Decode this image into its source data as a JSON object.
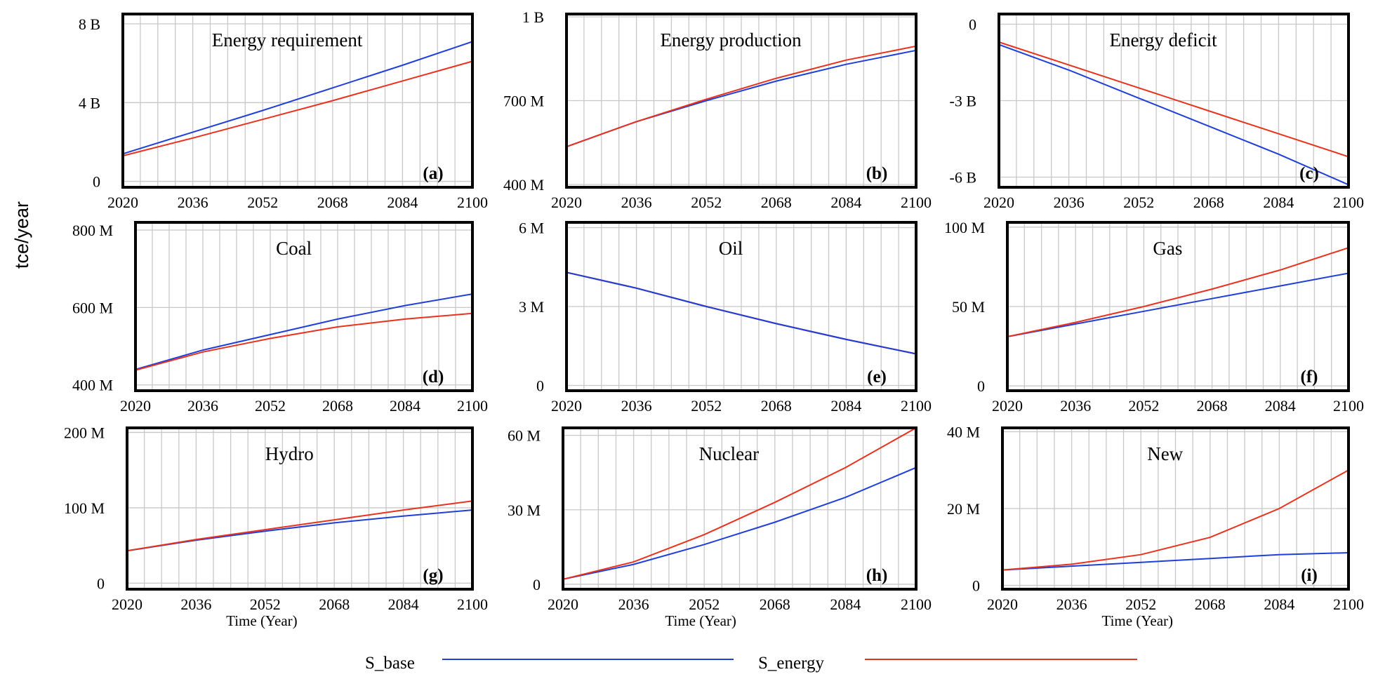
{
  "figure": {
    "y_axis_label": "tce/year",
    "legend": [
      {
        "name": "S_base",
        "color": "#1f3fd8"
      },
      {
        "name": "S_energy",
        "color": "#e8321e"
      }
    ]
  },
  "colors": {
    "base": "#1f3fd8",
    "energy": "#e8321e",
    "grid": "#c8c8c8",
    "frame": "#000000"
  },
  "chart_data": [
    {
      "type": "line",
      "id": "a",
      "title": "Energy requirement",
      "panel_label": "(a)",
      "xlim": [
        2020,
        2100
      ],
      "ylim": [
        -0.3,
        8.5
      ],
      "x_ticks": [
        2020,
        2036,
        2052,
        2068,
        2084,
        2100
      ],
      "x_tick_labels": [
        "2020",
        "2036",
        "2052",
        "2068",
        "2084",
        "2100"
      ],
      "y_ticks": [
        0,
        4,
        8
      ],
      "y_tick_labels": [
        "0",
        "4 B",
        "8 B"
      ],
      "xlabel": "",
      "ylabel": "tce/year (billions)",
      "series": [
        {
          "name": "S_base",
          "x": [
            2020,
            2036,
            2052,
            2068,
            2084,
            2100
          ],
          "values": [
            1.4,
            2.5,
            3.6,
            4.75,
            5.9,
            7.1
          ]
        },
        {
          "name": "S_energy",
          "x": [
            2020,
            2036,
            2052,
            2068,
            2084,
            2100
          ],
          "values": [
            1.3,
            2.2,
            3.15,
            4.1,
            5.1,
            6.1
          ]
        }
      ]
    },
    {
      "type": "line",
      "id": "b",
      "title": "Energy production",
      "panel_label": "(b)",
      "xlim": [
        2020,
        2100
      ],
      "ylim": [
        390,
        1010
      ],
      "x_ticks": [
        2020,
        2036,
        2052,
        2068,
        2084,
        2100
      ],
      "x_tick_labels": [
        "2020",
        "2036",
        "2052",
        "2068",
        "2084",
        "2100"
      ],
      "y_ticks": [
        400,
        700,
        1000
      ],
      "y_tick_labels": [
        "400 M",
        "700 M",
        "1 B"
      ],
      "xlabel": "",
      "ylabel": "tce/year (millions)",
      "series": [
        {
          "name": "S_base",
          "x": [
            2020,
            2036,
            2052,
            2068,
            2084,
            2100
          ],
          "values": [
            535,
            625,
            700,
            770,
            830,
            880
          ]
        },
        {
          "name": "S_energy",
          "x": [
            2020,
            2036,
            2052,
            2068,
            2084,
            2100
          ],
          "values": [
            535,
            625,
            705,
            780,
            845,
            895
          ]
        }
      ]
    },
    {
      "type": "line",
      "id": "c",
      "title": "Energy deficit",
      "panel_label": "(c)",
      "xlim": [
        2020,
        2100
      ],
      "ylim": [
        -6.4,
        0.4
      ],
      "x_ticks": [
        2020,
        2036,
        2052,
        2068,
        2084,
        2100
      ],
      "x_tick_labels": [
        "2020",
        "2036",
        "2052",
        "2068",
        "2084",
        "2100"
      ],
      "y_ticks": [
        -6,
        -3,
        0
      ],
      "y_tick_labels": [
        "-6 B",
        "-3 B",
        "0"
      ],
      "xlabel": "",
      "ylabel": "tce/year (billions)",
      "series": [
        {
          "name": "S_base",
          "x": [
            2020,
            2036,
            2052,
            2068,
            2084,
            2100
          ],
          "values": [
            -0.8,
            -1.8,
            -2.9,
            -4.0,
            -5.1,
            -6.3
          ]
        },
        {
          "name": "S_energy",
          "x": [
            2020,
            2036,
            2052,
            2068,
            2084,
            2100
          ],
          "values": [
            -0.7,
            -1.6,
            -2.5,
            -3.4,
            -4.3,
            -5.2
          ]
        }
      ]
    },
    {
      "type": "line",
      "id": "d",
      "title": "Coal",
      "panel_label": "(d)",
      "xlim": [
        2020,
        2100
      ],
      "ylim": [
        385,
        820
      ],
      "x_ticks": [
        2020,
        2036,
        2052,
        2068,
        2084,
        2100
      ],
      "x_tick_labels": [
        "2020",
        "2036",
        "2052",
        "2068",
        "2084",
        "2100"
      ],
      "y_ticks": [
        400,
        600,
        800
      ],
      "y_tick_labels": [
        "400 M",
        "600 M",
        "800 M"
      ],
      "xlabel": "",
      "ylabel": "tce/year (millions)",
      "series": [
        {
          "name": "S_base",
          "x": [
            2020,
            2036,
            2052,
            2068,
            2084,
            2100
          ],
          "values": [
            440,
            490,
            530,
            570,
            605,
            635
          ]
        },
        {
          "name": "S_energy",
          "x": [
            2020,
            2036,
            2052,
            2068,
            2084,
            2100
          ],
          "values": [
            438,
            485,
            520,
            550,
            570,
            585
          ]
        }
      ]
    },
    {
      "type": "line",
      "id": "e",
      "title": "Oil",
      "panel_label": "(e)",
      "xlim": [
        2020,
        2100
      ],
      "ylim": [
        -0.2,
        6.2
      ],
      "x_ticks": [
        2020,
        2036,
        2052,
        2068,
        2084,
        2100
      ],
      "x_tick_labels": [
        "2020",
        "2036",
        "2052",
        "2068",
        "2084",
        "2100"
      ],
      "y_ticks": [
        0,
        3,
        6
      ],
      "y_tick_labels": [
        "0",
        "3 M",
        "6 M"
      ],
      "xlabel": "",
      "ylabel": "tce/year (millions)",
      "series": [
        {
          "name": "S_base",
          "x": [
            2020,
            2036,
            2052,
            2068,
            2084,
            2100
          ],
          "values": [
            4.3,
            3.7,
            3.0,
            2.35,
            1.75,
            1.2
          ]
        },
        {
          "name": "S_energy",
          "x": [
            2020,
            2036,
            2052,
            2068,
            2084,
            2100
          ],
          "values": [
            4.3,
            3.7,
            3.0,
            2.35,
            1.75,
            1.2
          ]
        }
      ]
    },
    {
      "type": "line",
      "id": "f",
      "title": "Gas",
      "panel_label": "(f)",
      "xlim": [
        2020,
        2100
      ],
      "ylim": [
        -3,
        103
      ],
      "x_ticks": [
        2020,
        2036,
        2052,
        2068,
        2084,
        2100
      ],
      "x_tick_labels": [
        "2020",
        "2036",
        "2052",
        "2068",
        "2084",
        "2100"
      ],
      "y_ticks": [
        0,
        50,
        100
      ],
      "y_tick_labels": [
        "0",
        "50 M",
        "100 M"
      ],
      "xlabel": "",
      "ylabel": "tce/year (millions)",
      "series": [
        {
          "name": "S_base",
          "x": [
            2020,
            2036,
            2052,
            2068,
            2084,
            2100
          ],
          "values": [
            31,
            39,
            47,
            55,
            63,
            71
          ]
        },
        {
          "name": "S_energy",
          "x": [
            2020,
            2036,
            2052,
            2068,
            2084,
            2100
          ],
          "values": [
            31,
            40,
            50,
            61,
            73,
            87
          ]
        }
      ]
    },
    {
      "type": "line",
      "id": "g",
      "title": "Hydro",
      "panel_label": "(g)",
      "xlim": [
        2020,
        2100
      ],
      "ylim": [
        -8,
        206
      ],
      "x_ticks": [
        2020,
        2036,
        2052,
        2068,
        2084,
        2100
      ],
      "x_tick_labels": [
        "2020",
        "2036",
        "2052",
        "2068",
        "2084",
        "2100"
      ],
      "y_ticks": [
        0,
        100,
        200
      ],
      "y_tick_labels": [
        "0",
        "100 M",
        "200 M"
      ],
      "xlabel": "Time (Year)",
      "ylabel": "tce/year (millions)",
      "series": [
        {
          "name": "S_base",
          "x": [
            2020,
            2036,
            2052,
            2068,
            2084,
            2100
          ],
          "values": [
            43,
            57,
            69,
            80,
            89,
            97
          ]
        },
        {
          "name": "S_energy",
          "x": [
            2020,
            2036,
            2052,
            2068,
            2084,
            2100
          ],
          "values": [
            43,
            58,
            71,
            84,
            97,
            109
          ]
        }
      ]
    },
    {
      "type": "line",
      "id": "h",
      "title": "Nuclear",
      "panel_label": "(h)",
      "xlim": [
        2020,
        2100
      ],
      "ylim": [
        -2,
        63
      ],
      "x_ticks": [
        2020,
        2036,
        2052,
        2068,
        2084,
        2100
      ],
      "x_tick_labels": [
        "2020",
        "2036",
        "2052",
        "2068",
        "2084",
        "2100"
      ],
      "y_ticks": [
        0,
        30,
        60
      ],
      "y_tick_labels": [
        "0",
        "30 M",
        "60 M"
      ],
      "xlabel": "Time (Year)",
      "ylabel": "tce/year (millions)",
      "series": [
        {
          "name": "S_base",
          "x": [
            2020,
            2036,
            2052,
            2068,
            2084,
            2100
          ],
          "values": [
            2,
            8,
            16,
            25,
            35,
            47
          ]
        },
        {
          "name": "S_energy",
          "x": [
            2020,
            2036,
            2052,
            2068,
            2084,
            2100
          ],
          "values": [
            2,
            9,
            20,
            33,
            47,
            63
          ]
        }
      ]
    },
    {
      "type": "line",
      "id": "i",
      "title": "New",
      "panel_label": "(i)",
      "xlim": [
        2020,
        2100
      ],
      "ylim": [
        -1,
        41
      ],
      "x_ticks": [
        2020,
        2036,
        2052,
        2068,
        2084,
        2100
      ],
      "x_tick_labels": [
        "2020",
        "2036",
        "2052",
        "2068",
        "2084",
        "2100"
      ],
      "y_ticks": [
        0,
        20,
        40
      ],
      "y_tick_labels": [
        "0",
        "20 M",
        "40 M"
      ],
      "xlabel": "Time (Year)",
      "ylabel": "tce/year (millions)",
      "series": [
        {
          "name": "S_base",
          "x": [
            2020,
            2036,
            2052,
            2068,
            2084,
            2100
          ],
          "values": [
            4,
            5,
            6,
            7,
            8,
            8.5
          ]
        },
        {
          "name": "S_energy",
          "x": [
            2020,
            2036,
            2052,
            2068,
            2084,
            2100
          ],
          "values": [
            4,
            5.5,
            8,
            12.5,
            20,
            30
          ]
        }
      ]
    }
  ]
}
